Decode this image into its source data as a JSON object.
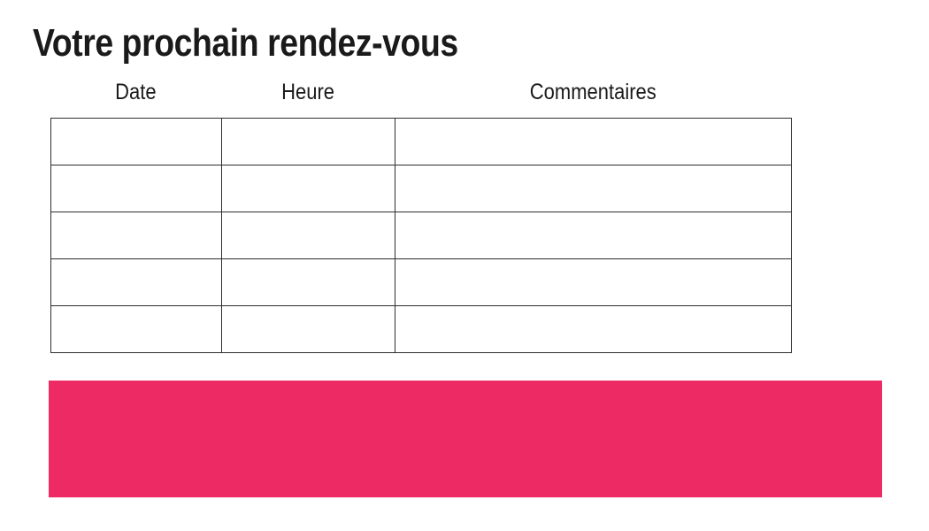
{
  "page": {
    "title": "Votre prochain rendez-vous"
  },
  "appointments_table": {
    "columns": [
      "Date",
      "Heure",
      "Commentaires"
    ],
    "rows": [
      [
        "",
        "",
        ""
      ],
      [
        "",
        "",
        ""
      ],
      [
        "",
        "",
        ""
      ],
      [
        "",
        "",
        ""
      ],
      [
        "",
        "",
        ""
      ]
    ]
  },
  "banner": {
    "text": ""
  },
  "colors": {
    "accent": "#ED2A63",
    "table_border": "#2D2D2D",
    "text": "#1A1A1A",
    "background": "#FFFFFF"
  }
}
